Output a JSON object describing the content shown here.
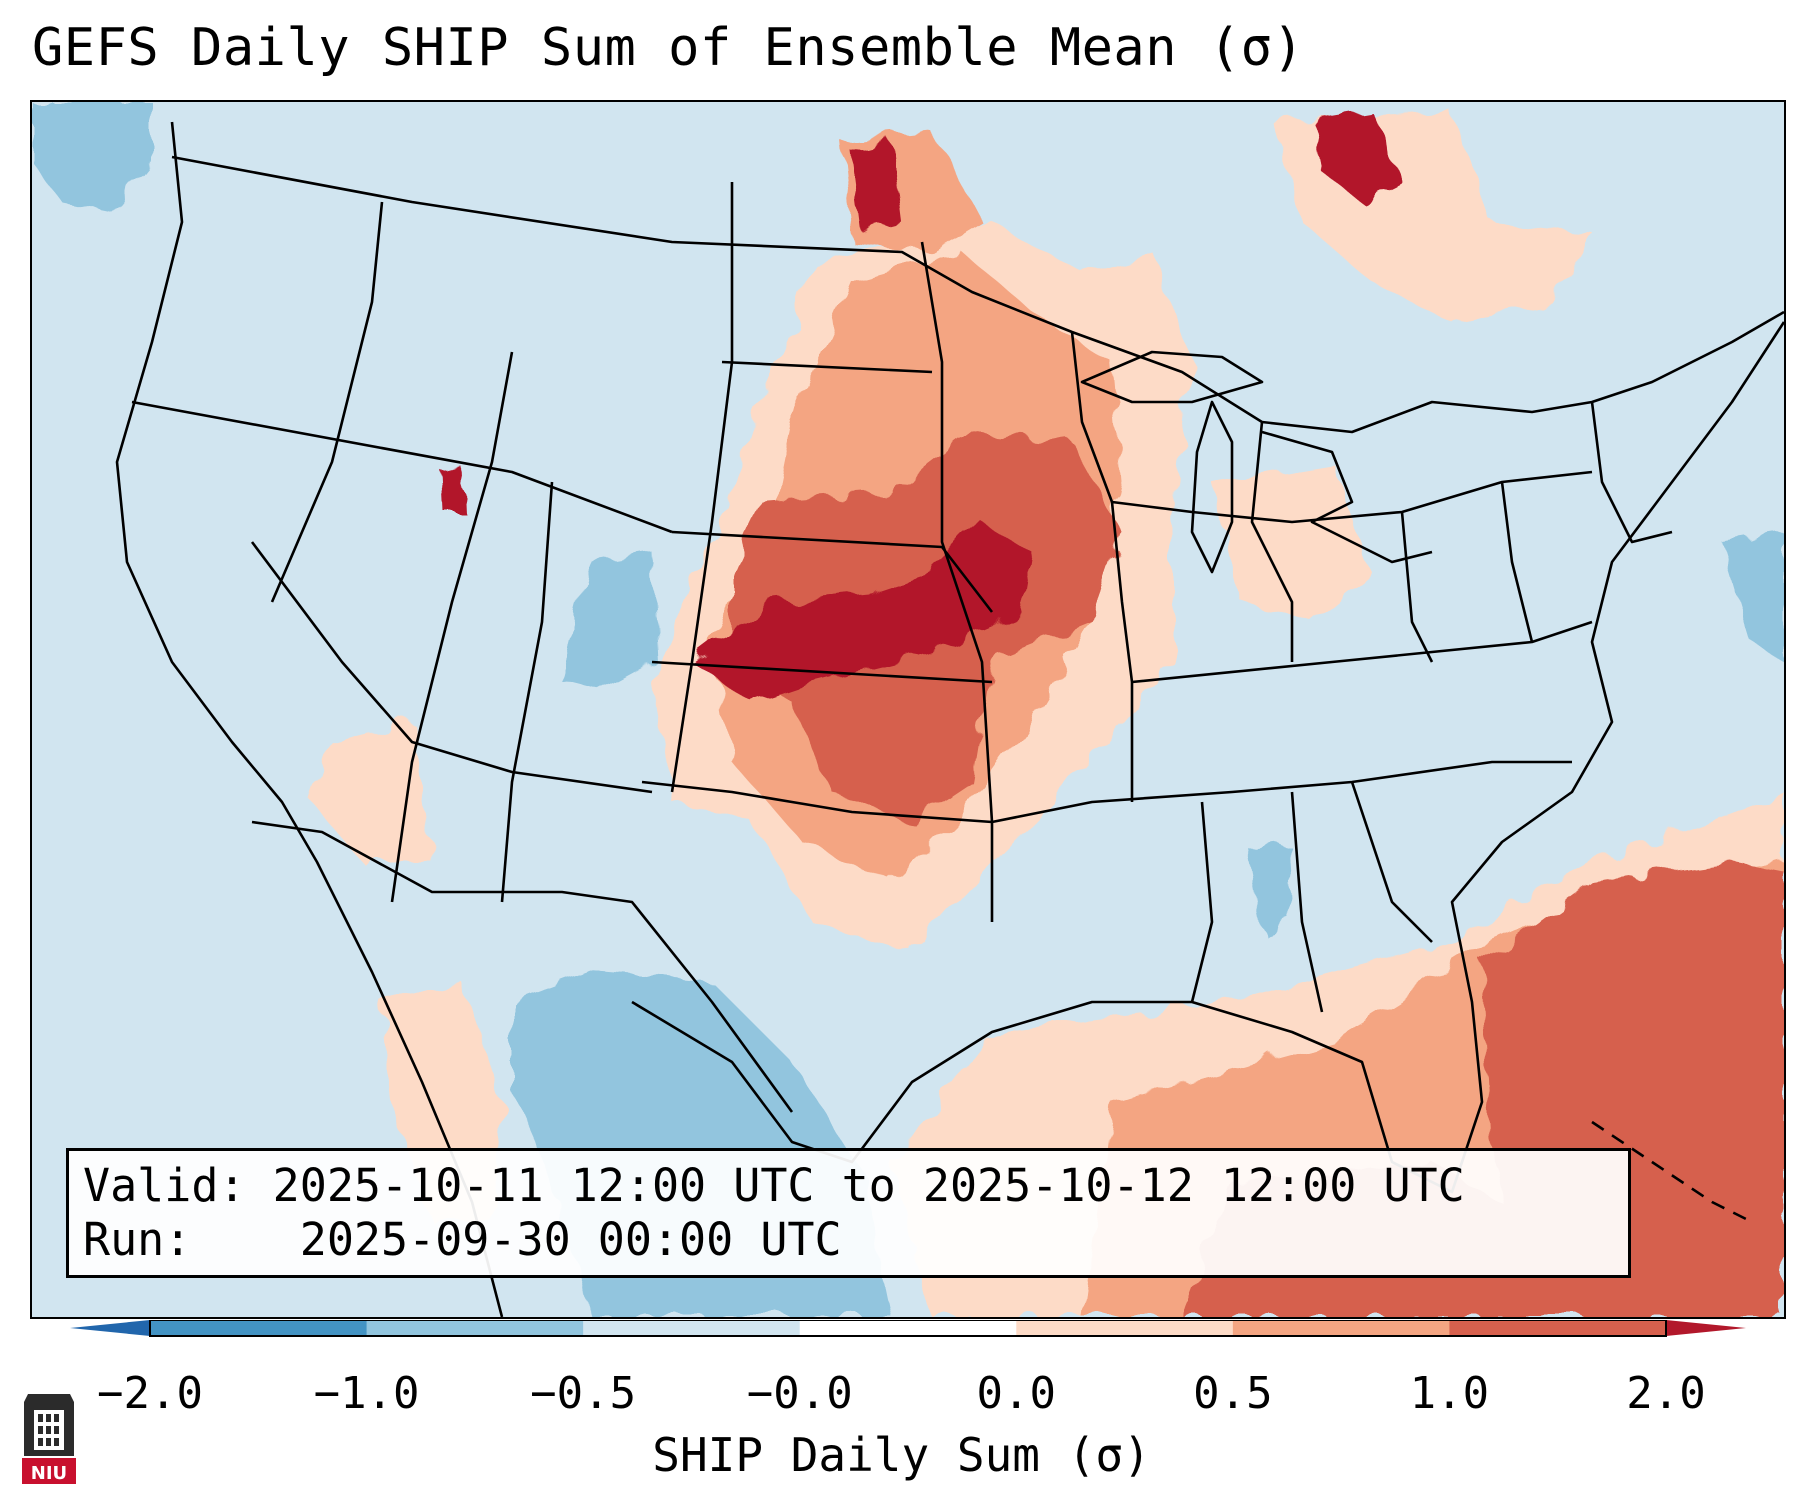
{
  "title": "GEFS Daily SHIP Sum of Ensemble Mean (σ)",
  "info": {
    "valid_label": "Valid:",
    "valid_value": "2025-10-11 12:00 UTC to 2025-10-12 12:00 UTC",
    "run_label": "Run:",
    "run_value": "2025-09-30 00:00 UTC"
  },
  "colorbar": {
    "label": "SHIP Daily Sum (σ)",
    "ticks": [
      "−2.0",
      "−1.0",
      "−0.5",
      "−0.0",
      "0.0",
      "0.5",
      "1.0",
      "2.0"
    ],
    "colors": [
      "#4393c3",
      "#92c5de",
      "#d1e5f0",
      "#fddbc7",
      "#f4a582",
      "#d6604d"
    ],
    "extend_min_color": "#2166ac",
    "extend_max_color": "#b2182b"
  },
  "map": {
    "background_color": "#d1e5f0",
    "anomalies": [
      {
        "region": "Central Plains / Nebraska-Kansas",
        "level": "2.0"
      },
      {
        "region": "Iowa / Upper Midwest",
        "level": "1.0"
      },
      {
        "region": "Oklahoma / North Texas",
        "level": "1.0"
      },
      {
        "region": "Northern Ontario",
        "level": "2.0"
      },
      {
        "region": "Western Atlantic / Caribbean",
        "level": "1.0"
      },
      {
        "region": "Gulf of Mexico",
        "level": "0.5"
      },
      {
        "region": "Colorado / West Texas / Mexico",
        "level": "-0.5"
      }
    ]
  },
  "logo": {
    "text": "NIU",
    "color": "#c8102e"
  }
}
